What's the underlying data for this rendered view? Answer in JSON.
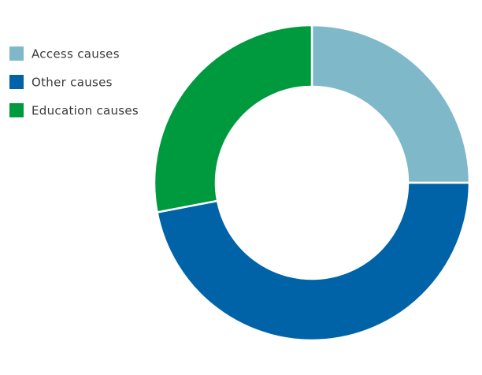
{
  "chart_data": {
    "type": "pie",
    "donut": true,
    "categories": [
      "Access causes",
      "Other causes",
      "Education causes"
    ],
    "values": [
      25,
      47,
      28
    ],
    "colors": [
      "#7fb8c8",
      "#0063a8",
      "#009a3e"
    ],
    "legend": "top-left"
  }
}
